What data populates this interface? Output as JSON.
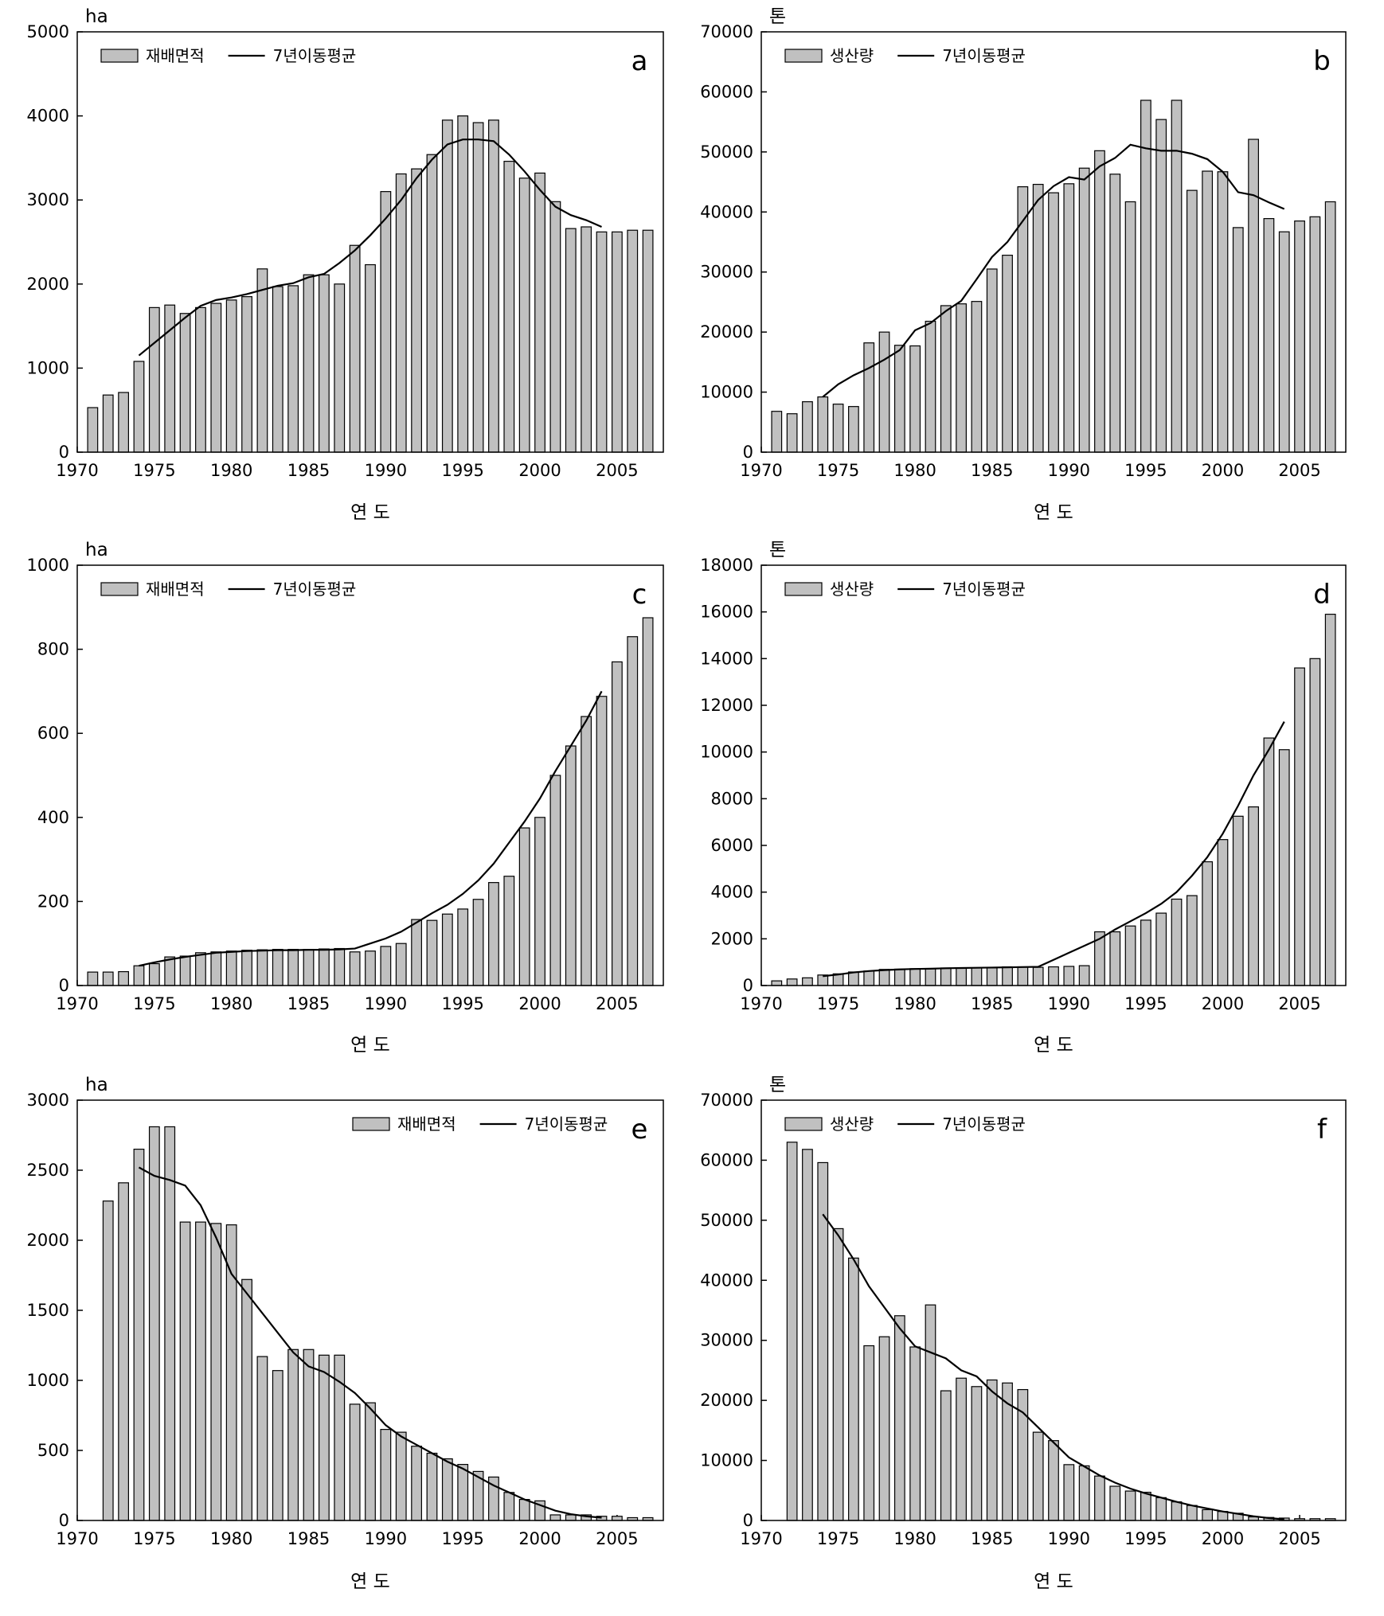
{
  "chart_data": [
    {
      "type": "bar",
      "panel_label": "a",
      "y_unit": "ha",
      "x_label": "연 도",
      "legend": "upper left",
      "x": [
        1971,
        1972,
        1973,
        1974,
        1975,
        1976,
        1977,
        1978,
        1979,
        1980,
        1981,
        1982,
        1983,
        1984,
        1985,
        1986,
        1987,
        1988,
        1989,
        1990,
        1991,
        1992,
        1993,
        1994,
        1995,
        1996,
        1997,
        1998,
        1999,
        2000,
        2001,
        2002,
        2003,
        2004,
        2005,
        2006,
        2007
      ],
      "series": [
        {
          "name": "재배면적",
          "type": "bar",
          "color": "#c0c0c0",
          "values": [
            530,
            680,
            710,
            1080,
            1720,
            1750,
            1650,
            1720,
            1770,
            1810,
            1850,
            2180,
            1970,
            1980,
            2110,
            2110,
            2000,
            2460,
            2230,
            3100,
            3310,
            3370,
            3540,
            3950,
            4000,
            3920,
            3950,
            3460,
            3260,
            3320,
            2980,
            2660,
            2680,
            2620,
            2620,
            2640,
            2640
          ]
        },
        {
          "name": "7년이동평균",
          "type": "line",
          "color": "#000000",
          "values": [
            null,
            null,
            null,
            1150,
            1300,
            1450,
            1600,
            1740,
            1810,
            1840,
            1880,
            1930,
            1980,
            2010,
            2080,
            2120,
            2250,
            2400,
            2580,
            2780,
            3000,
            3260,
            3480,
            3660,
            3720,
            3720,
            3700,
            3540,
            3340,
            3120,
            2920,
            2820,
            2760,
            2680,
            null,
            null,
            null
          ]
        }
      ],
      "xlim": [
        1970,
        2008
      ],
      "xticks": [
        1970,
        1975,
        1980,
        1985,
        1990,
        1995,
        2000,
        2005
      ],
      "ylim": [
        0,
        5000
      ],
      "yticks": [
        0,
        1000,
        2000,
        3000,
        4000,
        5000
      ]
    },
    {
      "type": "bar",
      "panel_label": "b",
      "y_unit": "톤",
      "x_label": "연 도",
      "legend": "upper left",
      "x": [
        1971,
        1972,
        1973,
        1974,
        1975,
        1976,
        1977,
        1978,
        1979,
        1980,
        1981,
        1982,
        1983,
        1984,
        1985,
        1986,
        1987,
        1988,
        1989,
        1990,
        1991,
        1992,
        1993,
        1994,
        1995,
        1996,
        1997,
        1998,
        1999,
        2000,
        2001,
        2002,
        2003,
        2004,
        2005,
        2006,
        2007
      ],
      "series": [
        {
          "name": "생산량",
          "type": "bar",
          "color": "#c0c0c0",
          "values": [
            6800,
            6400,
            8400,
            9200,
            8000,
            7600,
            18200,
            20000,
            17800,
            17700,
            21800,
            24400,
            24700,
            25100,
            30500,
            32800,
            44200,
            44600,
            43200,
            44700,
            47300,
            50200,
            46300,
            41700,
            58600,
            55400,
            58600,
            43600,
            46800,
            46700,
            37400,
            52100,
            38900,
            36700,
            38500,
            39200,
            41700
          ]
        },
        {
          "name": "7년이동평균",
          "type": "line",
          "color": "#000000",
          "values": [
            null,
            null,
            null,
            9200,
            11300,
            12800,
            14000,
            15400,
            17000,
            20300,
            21500,
            23500,
            25200,
            28800,
            32500,
            35000,
            38500,
            42000,
            44300,
            45800,
            45400,
            47600,
            49000,
            51200,
            50600,
            50200,
            50200,
            49700,
            48800,
            46700,
            43300,
            42800,
            41600,
            40500,
            null,
            null,
            null
          ]
        }
      ],
      "xlim": [
        1970,
        2008
      ],
      "xticks": [
        1970,
        1975,
        1980,
        1985,
        1990,
        1995,
        2000,
        2005
      ],
      "ylim": [
        0,
        70000
      ],
      "yticks": [
        0,
        10000,
        20000,
        30000,
        40000,
        50000,
        60000,
        70000
      ]
    },
    {
      "type": "bar",
      "panel_label": "c",
      "y_unit": "ha",
      "x_label": "연 도",
      "legend": "upper left",
      "x": [
        1971,
        1972,
        1973,
        1974,
        1975,
        1976,
        1977,
        1978,
        1979,
        1980,
        1981,
        1982,
        1983,
        1984,
        1985,
        1986,
        1987,
        1988,
        1989,
        1990,
        1991,
        1992,
        1993,
        1994,
        1995,
        1996,
        1997,
        1998,
        1999,
        2000,
        2001,
        2002,
        2003,
        2004,
        2005,
        2006,
        2007
      ],
      "series": [
        {
          "name": "재배면적",
          "type": "bar",
          "color": "#c0c0c0",
          "values": [
            32,
            32,
            33,
            47,
            52,
            68,
            70,
            78,
            80,
            82,
            84,
            85,
            86,
            86,
            86,
            87,
            88,
            80,
            82,
            93,
            100,
            157,
            155,
            170,
            182,
            205,
            245,
            260,
            375,
            400,
            500,
            570,
            640,
            688,
            770,
            830,
            875
          ]
        },
        {
          "name": "7년이동평균",
          "type": "line",
          "color": "#000000",
          "values": [
            null,
            null,
            null,
            47,
            55,
            62,
            68,
            73,
            78,
            80,
            82,
            83,
            84,
            84,
            85,
            85,
            86,
            88,
            100,
            112,
            128,
            150,
            172,
            192,
            218,
            250,
            290,
            340,
            390,
            445,
            510,
            570,
            630,
            700,
            null,
            null,
            null
          ]
        }
      ],
      "xlim": [
        1970,
        2008
      ],
      "xticks": [
        1970,
        1975,
        1980,
        1985,
        1990,
        1995,
        2000,
        2005
      ],
      "ylim": [
        0,
        1000
      ],
      "yticks": [
        0,
        200,
        400,
        600,
        800,
        1000
      ]
    },
    {
      "type": "bar",
      "panel_label": "d",
      "y_unit": "톤",
      "x_label": "연 도",
      "legend": "upper left",
      "x": [
        1971,
        1972,
        1973,
        1974,
        1975,
        1976,
        1977,
        1978,
        1979,
        1980,
        1981,
        1982,
        1983,
        1984,
        1985,
        1986,
        1987,
        1988,
        1989,
        1990,
        1991,
        1992,
        1993,
        1994,
        1995,
        1996,
        1997,
        1998,
        1999,
        2000,
        2001,
        2002,
        2003,
        2004,
        2005,
        2006,
        2007
      ],
      "series": [
        {
          "name": "생산량",
          "type": "bar",
          "color": "#c0c0c0",
          "values": [
            200,
            280,
            330,
            450,
            500,
            580,
            620,
            690,
            700,
            720,
            730,
            750,
            760,
            760,
            760,
            800,
            800,
            780,
            800,
            820,
            850,
            2300,
            2300,
            2550,
            2800,
            3100,
            3700,
            3850,
            5300,
            6250,
            7250,
            7650,
            10600,
            10100,
            13600,
            14000,
            15900
          ]
        },
        {
          "name": "7년이동평균",
          "type": "line",
          "color": "#000000",
          "values": [
            null,
            null,
            null,
            400,
            470,
            560,
            620,
            660,
            690,
            710,
            720,
            740,
            750,
            760,
            770,
            780,
            790,
            800,
            1100,
            1400,
            1700,
            2000,
            2400,
            2750,
            3100,
            3500,
            4000,
            4700,
            5500,
            6500,
            7700,
            9000,
            10100,
            11300,
            null,
            null,
            null
          ]
        }
      ],
      "xlim": [
        1970,
        2008
      ],
      "xticks": [
        1970,
        1975,
        1980,
        1985,
        1990,
        1995,
        2000,
        2005
      ],
      "ylim": [
        0,
        18000
      ],
      "yticks": [
        0,
        2000,
        4000,
        6000,
        8000,
        10000,
        12000,
        14000,
        16000,
        18000
      ]
    },
    {
      "type": "bar",
      "panel_label": "e",
      "y_unit": "ha",
      "x_label": "연 도",
      "legend": "upper right",
      "x": [
        1971,
        1972,
        1973,
        1974,
        1975,
        1976,
        1977,
        1978,
        1979,
        1980,
        1981,
        1982,
        1983,
        1984,
        1985,
        1986,
        1987,
        1988,
        1989,
        1990,
        1991,
        1992,
        1993,
        1994,
        1995,
        1996,
        1997,
        1998,
        1999,
        2000,
        2001,
        2002,
        2003,
        2004,
        2005,
        2006,
        2007
      ],
      "series": [
        {
          "name": "재배면적",
          "type": "bar",
          "color": "#c0c0c0",
          "values": [
            null,
            2280,
            2410,
            2650,
            2810,
            2810,
            2130,
            2130,
            2120,
            2110,
            1720,
            1170,
            1070,
            1220,
            1220,
            1180,
            1180,
            830,
            840,
            650,
            630,
            530,
            480,
            440,
            400,
            350,
            310,
            200,
            150,
            140,
            40,
            40,
            40,
            30,
            30,
            20,
            20
          ]
        },
        {
          "name": "7년이동평균",
          "type": "line",
          "color": "#000000",
          "values": [
            null,
            null,
            null,
            2520,
            2460,
            2430,
            2390,
            2250,
            2020,
            1760,
            1620,
            1480,
            1340,
            1200,
            1100,
            1060,
            990,
            910,
            800,
            680,
            600,
            540,
            480,
            420,
            370,
            310,
            250,
            200,
            150,
            110,
            70,
            45,
            30,
            20,
            null,
            null,
            null
          ]
        }
      ],
      "xlim": [
        1970,
        2008
      ],
      "xticks": [
        1970,
        1975,
        1980,
        1985,
        1990,
        1995,
        2000,
        2005
      ],
      "ylim": [
        0,
        3000
      ],
      "yticks": [
        0,
        500,
        1000,
        1500,
        2000,
        2500,
        3000
      ]
    },
    {
      "type": "bar",
      "panel_label": "f",
      "y_unit": "톤",
      "x_label": "연 도",
      "legend": "upper left",
      "x": [
        1971,
        1972,
        1973,
        1974,
        1975,
        1976,
        1977,
        1978,
        1979,
        1980,
        1981,
        1982,
        1983,
        1984,
        1985,
        1986,
        1987,
        1988,
        1989,
        1990,
        1991,
        1992,
        1993,
        1994,
        1995,
        1996,
        1997,
        1998,
        1999,
        2000,
        2001,
        2002,
        2003,
        2004,
        2005,
        2006,
        2007
      ],
      "series": [
        {
          "name": "생산량",
          "type": "bar",
          "color": "#c0c0c0",
          "values": [
            null,
            63000,
            61800,
            59600,
            48600,
            43700,
            29100,
            30600,
            34100,
            28900,
            35900,
            21600,
            23700,
            22300,
            23400,
            22900,
            21800,
            14700,
            13300,
            9300,
            9100,
            7400,
            5700,
            4900,
            4700,
            3800,
            3100,
            2500,
            1800,
            1500,
            1200,
            600,
            500,
            400,
            300,
            300,
            300
          ]
        },
        {
          "name": "7년이동평균",
          "type": "line",
          "color": "#000000",
          "values": [
            null,
            null,
            null,
            51000,
            47500,
            43500,
            39000,
            35500,
            32000,
            29000,
            28000,
            27000,
            25000,
            24000,
            21500,
            19500,
            18000,
            15500,
            13000,
            10500,
            9000,
            7500,
            6300,
            5300,
            4500,
            3800,
            3100,
            2500,
            2000,
            1500,
            1100,
            700,
            400,
            200,
            null,
            null,
            null
          ]
        }
      ],
      "xlim": [
        1970,
        2008
      ],
      "xticks": [
        1970,
        1975,
        1980,
        1985,
        1990,
        1995,
        2000,
        2005
      ],
      "ylim": [
        0,
        70000
      ],
      "yticks": [
        0,
        10000,
        20000,
        30000,
        40000,
        50000,
        60000,
        70000
      ]
    }
  ]
}
